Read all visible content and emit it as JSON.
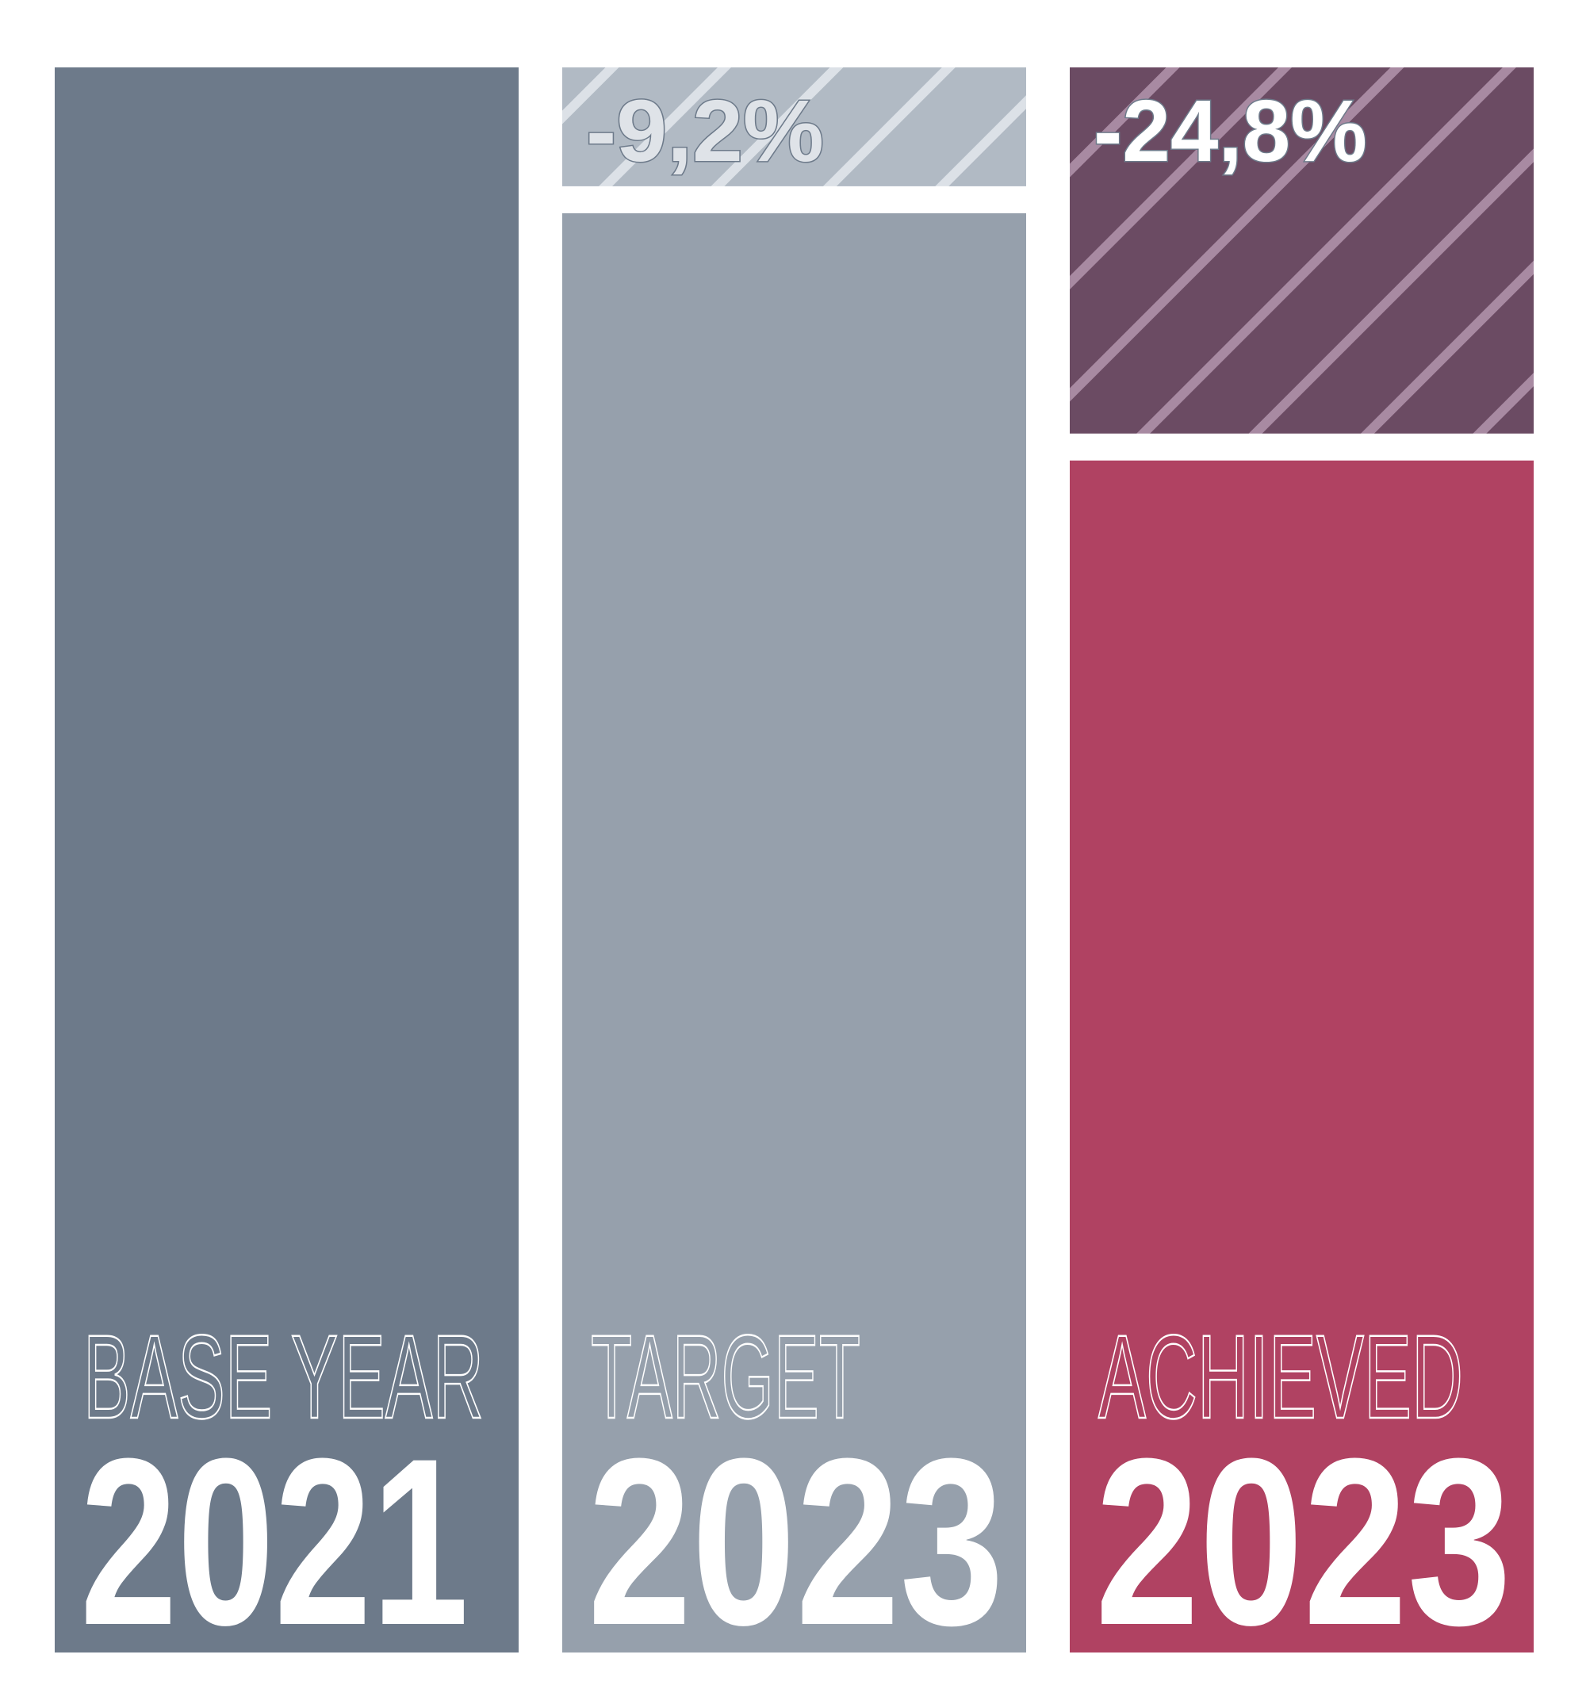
{
  "chart_data": {
    "type": "bar",
    "categories": [
      "2021",
      "2023",
      "2023"
    ],
    "baseline": 100,
    "columns": [
      {
        "title": "BASE YEAR",
        "year": "2021",
        "value": 100,
        "reduction": null,
        "reduction_label": "",
        "color": "#6d7a8a",
        "stripe_bg": null,
        "stripe_color": null,
        "label_color": null,
        "label_shadow": null
      },
      {
        "title": "TARGET",
        "year": "2023",
        "value": 90.8,
        "reduction": 9.2,
        "reduction_label": "-9,2%",
        "color": "#96a0ac",
        "stripe_bg": "#b1bac4",
        "stripe_color": "#dce1e7",
        "label_color": "#dfe3e8",
        "label_shadow": "#6d7a8a"
      },
      {
        "title": "ACHIEVED",
        "year": "2023",
        "value": 75.2,
        "reduction": 24.8,
        "reduction_label": "-24,8%",
        "color": "#b04262",
        "stripe_bg": "#6b4b63",
        "stripe_color": "#a88aa2",
        "label_color": "#ffffff",
        "label_shadow": "#6d7a8a"
      }
    ],
    "text_color": "#ffffff",
    "background": "#ffffff",
    "grid": false,
    "legend": "none"
  }
}
